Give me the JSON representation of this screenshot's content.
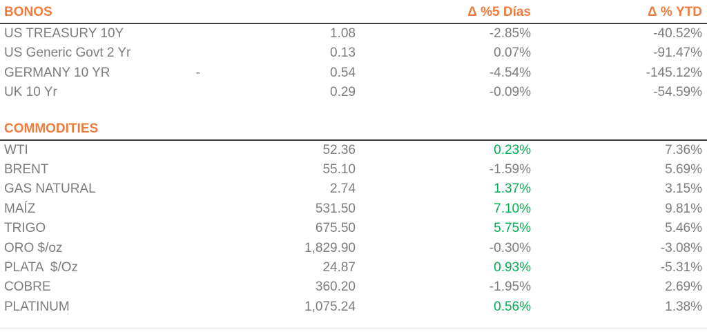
{
  "colors": {
    "accent_orange": "#EF7C3C",
    "text_gray": "#7B7C7E",
    "positive_green": "#00B050",
    "header_rule": "#3C3C3C",
    "bottom_rule": "#E3E3E3"
  },
  "columns": {
    "d5_label": "Δ %5 Días",
    "ytd_label": "Δ % YTD"
  },
  "sections": [
    {
      "title": "BONOS",
      "show_column_headers": true,
      "rows": [
        {
          "name": "US TREASURY 10Y",
          "note": "",
          "value": "1.08",
          "d5": "-2.85%",
          "d5_green": false,
          "ytd": "-40.52%"
        },
        {
          "name": "US Generic Govt 2 Yr",
          "note": "",
          "value": "0.13",
          "d5": "0.07%",
          "d5_green": false,
          "ytd": "-91.47%"
        },
        {
          "name": "GERMANY 10 YR",
          "note": "-",
          "value": "0.54",
          "d5": "-4.54%",
          "d5_green": false,
          "ytd": "-145.12%"
        },
        {
          "name": "UK 10 Yr",
          "note": "",
          "value": "0.29",
          "d5": "-0.09%",
          "d5_green": false,
          "ytd": "-54.59%"
        }
      ]
    },
    {
      "title": "COMMODITIES",
      "show_column_headers": false,
      "rows": [
        {
          "name": "WTI",
          "note": "",
          "value": "52.36",
          "d5": "0.23%",
          "d5_green": true,
          "ytd": "7.36%"
        },
        {
          "name": "BRENT",
          "note": "",
          "value": "55.10",
          "d5": "-1.59%",
          "d5_green": false,
          "ytd": "5.69%"
        },
        {
          "name": "GAS NATURAL",
          "note": "",
          "value": "2.74",
          "d5": "1.37%",
          "d5_green": true,
          "ytd": "3.15%"
        },
        {
          "name": "MAÍZ",
          "note": "",
          "value": "531.50",
          "d5": "7.10%",
          "d5_green": true,
          "ytd": "9.81%"
        },
        {
          "name": "TRIGO",
          "note": "",
          "value": "675.50",
          "d5": "5.75%",
          "d5_green": true,
          "ytd": "5.46%"
        },
        {
          "name": "ORO $/oz",
          "note": "",
          "value": "1,829.90",
          "d5": "-0.30%",
          "d5_green": false,
          "ytd": "-3.08%"
        },
        {
          "name": "PLATA  $/Oz",
          "note": "",
          "value": "24.87",
          "d5": "0.93%",
          "d5_green": true,
          "ytd": "-5.31%"
        },
        {
          "name": "COBRE",
          "note": "",
          "value": "360.20",
          "d5": "-1.95%",
          "d5_green": false,
          "ytd": "2.69%"
        },
        {
          "name": "PLATINUM",
          "note": "",
          "value": "1,075.24",
          "d5": "0.56%",
          "d5_green": true,
          "ytd": "1.38%"
        }
      ]
    }
  ],
  "chart_data": [
    {
      "type": "table",
      "title": "BONOS",
      "columns": [
        "name",
        "last",
        "Δ %5 Días",
        "Δ % YTD"
      ],
      "rows": [
        [
          "US TREASURY 10Y",
          1.08,
          -2.85,
          -40.52
        ],
        [
          "US Generic Govt 2 Yr",
          0.13,
          0.07,
          -91.47
        ],
        [
          "GERMANY 10 YR",
          0.54,
          -4.54,
          -145.12
        ],
        [
          "UK 10 Yr",
          0.29,
          -0.09,
          -54.59
        ]
      ],
      "notes": "percent columns shown with % suffix; GERMANY 10 YR row has a dash note column"
    },
    {
      "type": "table",
      "title": "COMMODITIES",
      "columns": [
        "name",
        "last",
        "Δ %5 Días",
        "Δ % YTD"
      ],
      "rows": [
        [
          "WTI",
          52.36,
          0.23,
          7.36
        ],
        [
          "BRENT",
          55.1,
          -1.59,
          5.69
        ],
        [
          "GAS NATURAL",
          2.74,
          1.37,
          3.15
        ],
        [
          "MAÍZ",
          531.5,
          7.1,
          9.81
        ],
        [
          "TRIGO",
          675.5,
          5.75,
          5.46
        ],
        [
          "ORO $/oz",
          1829.9,
          -0.3,
          -3.08
        ],
        [
          "PLATA $/Oz",
          24.87,
          0.93,
          -5.31
        ],
        [
          "COBRE",
          360.2,
          -1.95,
          2.69
        ],
        [
          "PLATINUM",
          1075.24,
          0.56,
          1.38
        ]
      ],
      "notes": "positive 5-day changes rendered in green, all other values gray"
    }
  ]
}
